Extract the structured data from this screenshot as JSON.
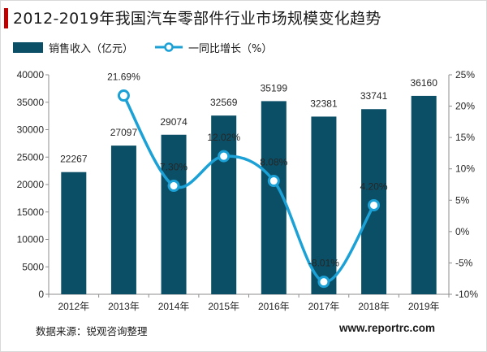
{
  "title": "2012-2019年我国汽车零部件行业市场规模变化趋势",
  "legend": {
    "bar_label": "销售收入（亿元）",
    "line_label": "一同比增长（%）"
  },
  "source": "数据来源：锐观咨询整理",
  "website": "www.reportrc.com",
  "colors": {
    "bar": "#0b4f66",
    "line": "#1ba1d6",
    "marker_fill": "#ffffff",
    "accent": "#c00000"
  },
  "chart_data": {
    "type": "bar",
    "categories": [
      "2012年",
      "2013年",
      "2014年",
      "2015年",
      "2016年",
      "2017年",
      "2018年",
      "2019年"
    ],
    "series": [
      {
        "name": "销售收入（亿元）",
        "type": "bar",
        "axis": "left",
        "values": [
          22267,
          27097,
          29074,
          32569,
          35199,
          32381,
          33741,
          36160
        ]
      },
      {
        "name": "一同比增长（%）",
        "type": "line",
        "axis": "right",
        "smooth": true,
        "values": [
          null,
          21.69,
          7.3,
          12.02,
          8.08,
          -8.01,
          4.2,
          null
        ],
        "labels": [
          "",
          "21.69%",
          "7.30%",
          "12.02%",
          "8.08%",
          "-8.01%",
          "4.20%",
          ""
        ]
      }
    ],
    "ylim": [
      0,
      40000
    ],
    "yticks": [
      0,
      5000,
      10000,
      15000,
      20000,
      25000,
      30000,
      35000,
      40000
    ],
    "y2lim": [
      -10,
      25
    ],
    "y2ticks": [
      "-10%",
      "-5%",
      "0%",
      "5%",
      "10%",
      "15%",
      "20%",
      "25%"
    ],
    "grid": false,
    "legend_position": "top-left"
  }
}
